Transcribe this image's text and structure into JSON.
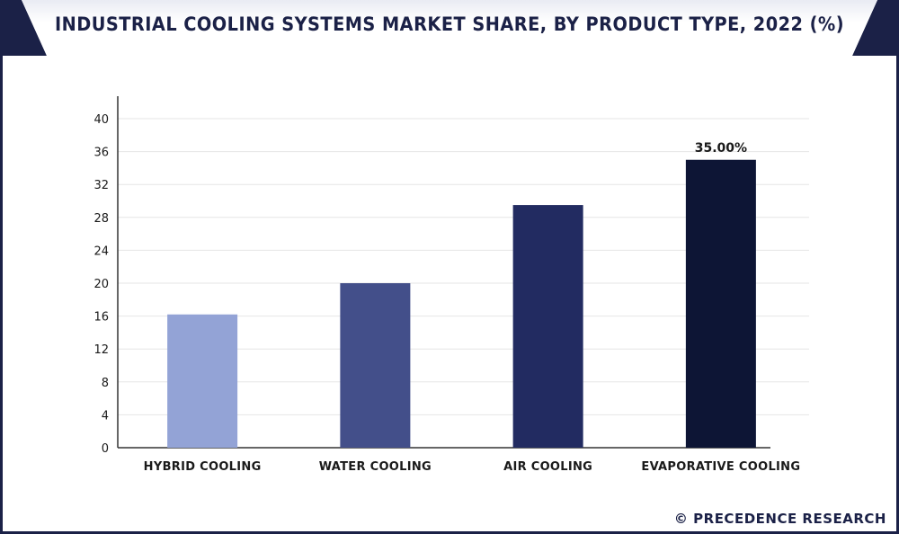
{
  "title": "INDUSTRIAL COOLING SYSTEMS MARKET SHARE, BY PRODUCT TYPE, 2022 (%)",
  "watermark": "© PRECEDENCE RESEARCH",
  "chart_data": {
    "type": "bar",
    "title": "INDUSTRIAL COOLING SYSTEMS MARKET SHARE, BY PRODUCT TYPE, 2022 (%)",
    "categories": [
      "HYBRID COOLING",
      "WATER COOLING",
      "AIR COOLING",
      "EVAPORATIVE COOLING"
    ],
    "values": [
      16.2,
      20.0,
      29.5,
      35.0
    ],
    "data_labels": [
      "",
      "",
      "",
      "35.00%"
    ],
    "colors": [
      "#93a3d6",
      "#434f8a",
      "#222b61",
      "#0d1535"
    ],
    "xlabel": "",
    "ylabel": "",
    "ylim": [
      0,
      40
    ],
    "yticks": [
      0,
      4,
      8,
      12,
      16,
      20,
      24,
      28,
      32,
      36,
      40
    ],
    "grid": true,
    "legend": "none"
  }
}
